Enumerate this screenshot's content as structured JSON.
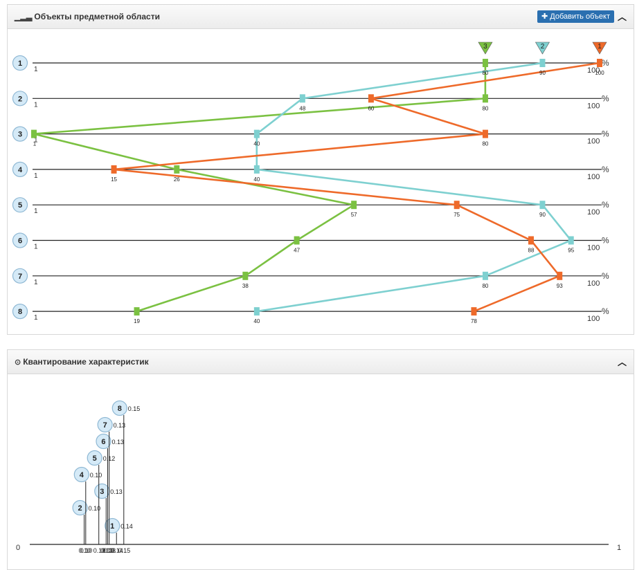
{
  "panel1": {
    "title": "Объекты предметной области",
    "title_icon": "bar-signal-icon",
    "add_button": "Добавить объект",
    "add_icon": "plus-icon",
    "collapse_icon": "chevron-up-icon"
  },
  "panel2": {
    "title": "Квантирование характеристик",
    "title_icon": "target-icon",
    "collapse_icon": "chevron-up-icon"
  },
  "chart_data": [
    {
      "type": "line",
      "row_labels": [
        "1",
        "2",
        "3",
        "4",
        "5",
        "6",
        "7",
        "8"
      ],
      "axis_min_label": "1",
      "axis_max_label": "100",
      "unit": "%",
      "xlim": [
        1,
        100
      ],
      "series": [
        {
          "marker": "1",
          "color": "#ee6a2a",
          "values": [
            100,
            60,
            80,
            15,
            75,
            88,
            93,
            78
          ]
        },
        {
          "marker": "2",
          "color": "#7ed0d0",
          "values": [
            90,
            48,
            40,
            40,
            90,
            95,
            80,
            40
          ]
        },
        {
          "marker": "3",
          "color": "#7bc142",
          "values": [
            80,
            80,
            1,
            26,
            57,
            47,
            38,
            19
          ]
        }
      ]
    },
    {
      "type": "scatter",
      "x_min_label": "0",
      "x_max_label": "1",
      "xlim": [
        0,
        1
      ],
      "points": [
        {
          "id": "1",
          "value": 0.14,
          "label": "0.14"
        },
        {
          "id": "2",
          "value": 0.1,
          "label": "0.10"
        },
        {
          "id": "3",
          "value": 0.13,
          "label": "0.13"
        },
        {
          "id": "4",
          "value": 0.1,
          "label": "0.10"
        },
        {
          "id": "5",
          "value": 0.12,
          "label": "0.12"
        },
        {
          "id": "6",
          "value": 0.13,
          "label": "0.13"
        },
        {
          "id": "7",
          "value": 0.13,
          "label": "0.13"
        },
        {
          "id": "8",
          "value": 0.15,
          "label": "0.15"
        }
      ]
    }
  ]
}
